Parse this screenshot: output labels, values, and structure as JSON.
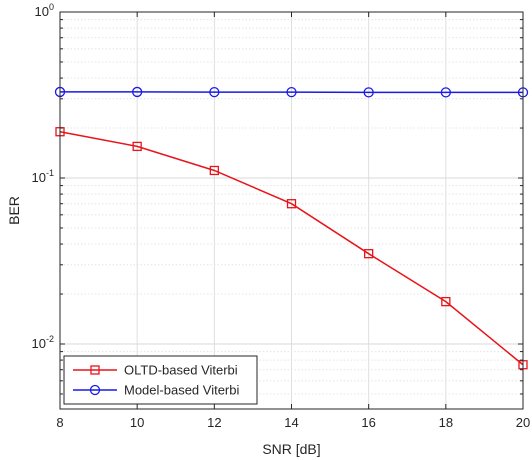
{
  "chart_data": {
    "type": "line",
    "xlabel": "SNR [dB]",
    "ylabel": "BER",
    "yscale": "log",
    "xlim": [
      8,
      20
    ],
    "ylim": [
      0.004,
      1
    ],
    "x_ticks": [
      8,
      10,
      12,
      14,
      16,
      18,
      20
    ],
    "y_ticks": [
      {
        "value": 1,
        "base": "10",
        "exp": "0"
      },
      {
        "value": 0.1,
        "base": "10",
        "exp": "-1"
      },
      {
        "value": 0.01,
        "base": "10",
        "exp": "-2"
      }
    ],
    "grid": true,
    "minor_grid": true,
    "legend_position": "bottom-left",
    "x": [
      8,
      10,
      12,
      14,
      16,
      18,
      20
    ],
    "series": [
      {
        "name": "OLTD-based Viterbi",
        "color": "#e8141a",
        "marker": "square",
        "values": [
          0.19,
          0.155,
          0.111,
          0.07,
          0.035,
          0.018,
          0.0075
        ]
      },
      {
        "name": "Model-based Viterbi",
        "color": "#1a1ae6",
        "marker": "circle",
        "values": [
          0.33,
          0.33,
          0.329,
          0.329,
          0.328,
          0.328,
          0.328
        ]
      }
    ]
  }
}
